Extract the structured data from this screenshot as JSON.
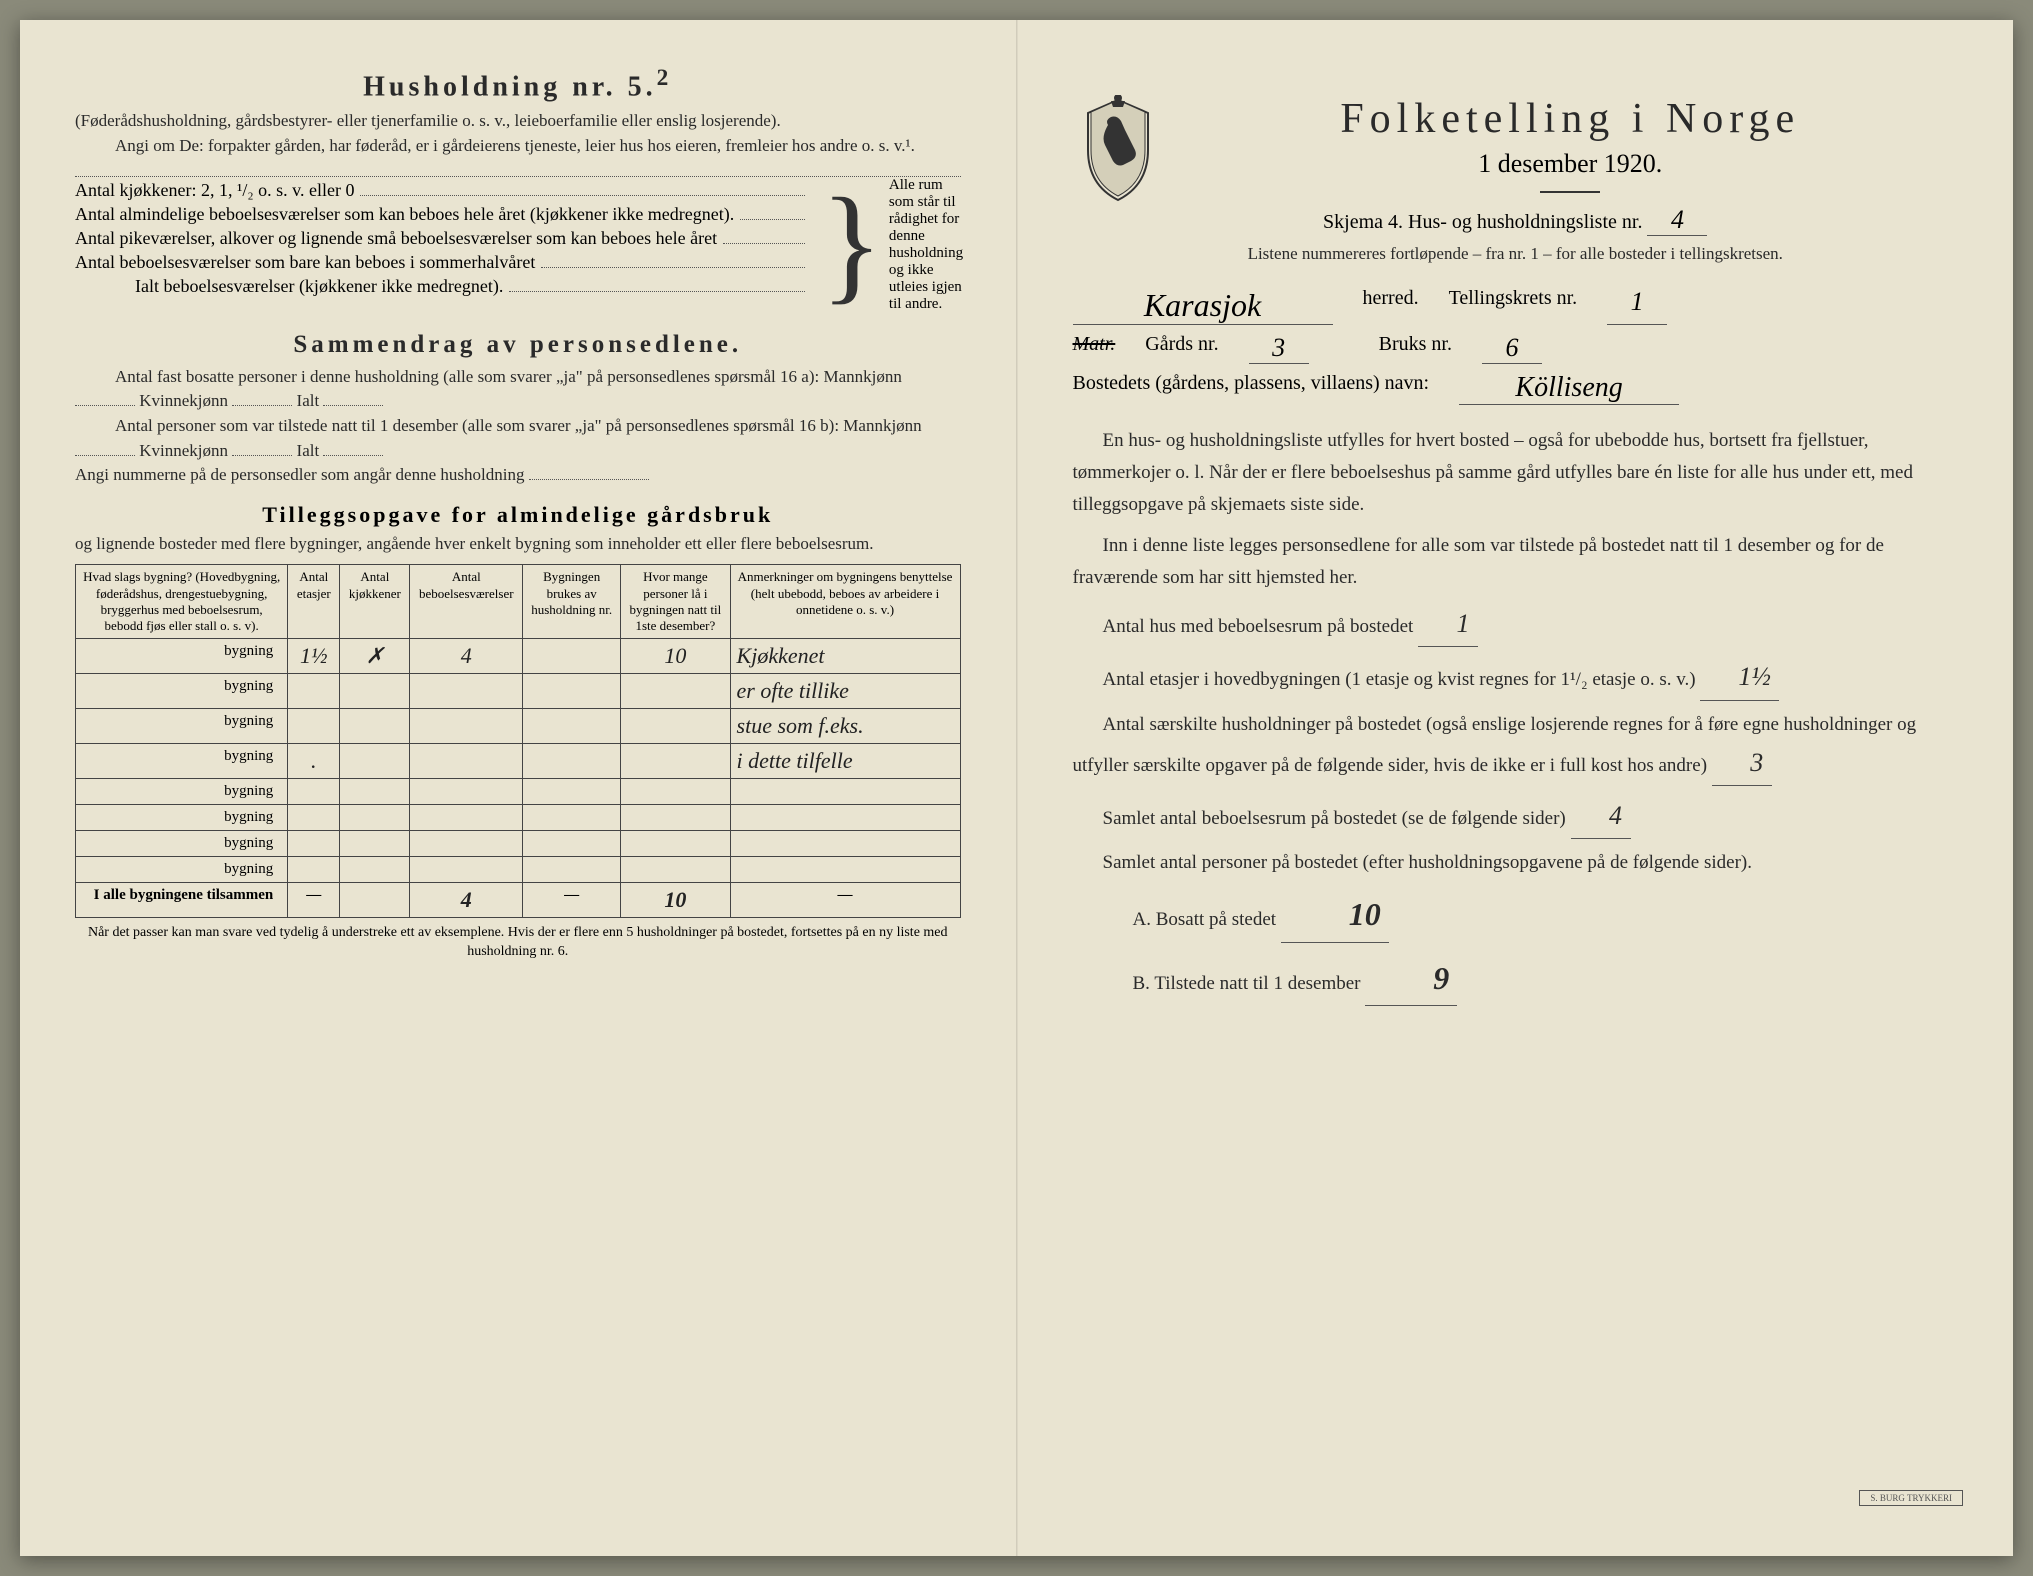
{
  "left": {
    "title": "Husholdning nr. 5.",
    "title_sup": "2",
    "para1": "(Føderådshusholdning, gårdsbestyrer- eller tjenerfamilie o. s. v., leieboerfamilie eller enslig losjerende).",
    "para2": "Angi om De: forpakter gården, har føderåd, er i gårdeierens tjeneste, leier hus hos eieren, fremleier hos andre o. s. v.¹.",
    "bracket": {
      "l1": "Antal kjøkkener: 2, 1, ¹/₂ o. s. v. eller 0",
      "l2": "Antal almindelige beboelsesværelser som kan beboes hele året (kjøkkener ikke medregnet).",
      "l3": "Antal pikeværelser, alkover og lignende små beboelsesværelser som kan beboes hele året",
      "l4": "Antal beboelsesværelser som bare kan beboes i sommerhalvåret",
      "l5": "Ialt beboelsesværelser (kjøkkener ikke medregnet).",
      "side": "Alle rum som står til rådighet for denne husholdning og ikke utleies igjen til andre."
    },
    "section2_title": "Sammendrag av personsedlene.",
    "s2_l1": "Antal fast bosatte personer i denne husholdning (alle som svarer „ja\" på personsedlenes spørsmål 16 a): Mannkjønn",
    "s2_kv": "Kvinnekjønn",
    "s2_ialt": "Ialt",
    "s2_l2": "Antal personer som var tilstede natt til 1 desember (alle som svarer „ja\" på personsedlenes spørsmål 16 b): Mannkjønn",
    "s2_l3": "Angi nummerne på de personsedler som angår denne husholdning",
    "section3_title": "Tilleggsopgave for almindelige gårdsbruk",
    "s3_intro": "og lignende bosteder med flere bygninger, angående hver enkelt bygning som inneholder ett eller flere beboelsesrum.",
    "table": {
      "headers": {
        "c1": "Hvad slags bygning?\n(Hovedbygning, føderådshus, drengestuebygning, bryggerhus med beboelsesrum, bebodd fjøs eller stall o. s. v).",
        "c2": "Antal etasjer",
        "c3": "Antal kjøkkener",
        "c4": "Antal beboelsesværelser",
        "c5": "Bygningen brukes av husholdning nr.",
        "c6": "Hvor mange personer lå i bygningen natt til 1ste desember?",
        "c7": "Anmerkninger om bygningens benyttelse (helt ubebodd, beboes av arbeidere i onnetidene o. s. v.)"
      },
      "row_label": "bygning",
      "rows": [
        {
          "etasjer": "1½",
          "kjokken": "✗",
          "vaer": "4",
          "hush": "",
          "pers": "10",
          "anm": "Kjøkkenet"
        },
        {
          "etasjer": "",
          "kjokken": "",
          "vaer": "",
          "hush": "",
          "pers": "",
          "anm": "er ofte tillike"
        },
        {
          "etasjer": "",
          "kjokken": "",
          "vaer": "",
          "hush": "",
          "pers": "",
          "anm": "stue som f.eks."
        },
        {
          "etasjer": ".",
          "kjokken": "",
          "vaer": "",
          "hush": "",
          "pers": "",
          "anm": "i dette tilfelle"
        },
        {
          "etasjer": "",
          "kjokken": "",
          "vaer": "",
          "hush": "",
          "pers": "",
          "anm": ""
        },
        {
          "etasjer": "",
          "kjokken": "",
          "vaer": "",
          "hush": "",
          "pers": "",
          "anm": ""
        },
        {
          "etasjer": "",
          "kjokken": "",
          "vaer": "",
          "hush": "",
          "pers": "",
          "anm": ""
        },
        {
          "etasjer": "",
          "kjokken": "",
          "vaer": "",
          "hush": "",
          "pers": "",
          "anm": ""
        }
      ],
      "totals_label": "I alle bygningene tilsammen",
      "totals": {
        "etasjer": "—",
        "kjokken": "",
        "vaer": "4",
        "hush": "—",
        "pers": "10",
        "anm": "—"
      }
    },
    "footnote": "Når det passer kan man svare ved tydelig å understreke ett av eksemplene.\nHvis der er flere enn 5 husholdninger på bostedet, fortsettes på en ny liste med husholdning nr. 6."
  },
  "right": {
    "main_title": "Folketelling i Norge",
    "date": "1 desember 1920.",
    "form_line": "Skjema 4. Hus- og husholdningsliste nr.",
    "form_nr": "4",
    "list_note": "Listene nummereres fortløpende – fra nr. 1 – for alle bosteder i tellingskretsen.",
    "herred_value": "Karasjok",
    "herred_label": "herred.",
    "krets_label": "Tellingskrets nr.",
    "krets_value": "1",
    "matr_label": "Matr.",
    "gards_label": "Gårds nr.",
    "gards_value": "3",
    "bruks_label": "Bruks nr.",
    "bruks_value": "6",
    "bosted_label": "Bostedets (gårdens, plassens, villaens) navn:",
    "bosted_value": "Kölliseng",
    "para1": "En hus- og husholdningsliste utfylles for hvert bosted – også for ubebodde hus, bortsett fra fjellstuer, tømmerkojer o. l. Når der er flere beboelseshus på samme gård utfylles bare én liste for alle hus under ett, med tilleggsopgave på skjemaets siste side.",
    "para2": "Inn i denne liste legges personsedlene for alle som var tilstede på bostedet natt til 1 desember og for de fraværende som har sitt hjemsted her.",
    "q1": "Antal hus med beboelsesrum på bostedet",
    "q1_value": "1",
    "q2a": "Antal etasjer i hovedbygningen (1 etasje og kvist regnes for 1¹/₂ etasje o. s. v.)",
    "q2_value": "1½",
    "q3": "Antal særskilte husholdninger på bostedet (også enslige losjerende regnes for å føre egne husholdninger og utfyller særskilte opgaver på de følgende sider, hvis de ikke er i full kost hos andre)",
    "q3_value": "3",
    "q4": "Samlet antal beboelsesrum på bostedet (se de følgende sider)",
    "q4_value": "4",
    "q5": "Samlet antal personer på bostedet (efter husholdningsopgavene på de følgende sider).",
    "qA": "A.  Bosatt på stedet",
    "qA_value": "10",
    "qB": "B.  Tilstede natt til 1 desember",
    "qB_value": "9",
    "stamp": "S. BURG TRYKKERI"
  },
  "colors": {
    "paper": "#e9e4d1",
    "ink": "#2a2a2a",
    "hand": "#222222"
  }
}
